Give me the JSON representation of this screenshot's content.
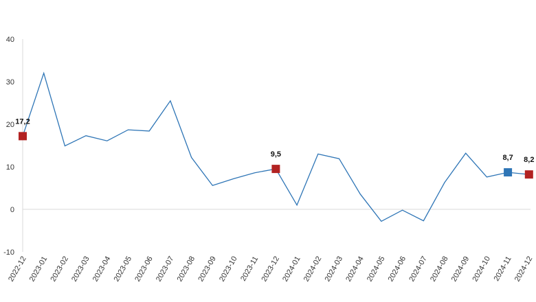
{
  "chart_data": {
    "type": "line",
    "title": "",
    "xlabel": "",
    "ylabel": "",
    "ylim": [
      -10,
      40
    ],
    "yticks": [
      -10,
      0,
      10,
      20,
      30,
      40
    ],
    "grid": false,
    "categories": [
      "2022-12",
      "2023-01",
      "2023-02",
      "2023-03",
      "2023-04",
      "2023-05",
      "2023-06",
      "2023-07",
      "2023-08",
      "2023-09",
      "2023-10",
      "2023-11",
      "2023-12",
      "2024-01",
      "2024-02",
      "2024-03",
      "2024-04",
      "2024-05",
      "2024-06",
      "2024-07",
      "2024-08",
      "2024-09",
      "2024-10",
      "2024-11",
      "2024-12"
    ],
    "series": [
      {
        "color": "#2e75b6",
        "values": [
          17.2,
          32.0,
          14.9,
          17.3,
          16.1,
          18.7,
          18.4,
          25.5,
          12.2,
          5.6,
          7.2,
          8.6,
          9.5,
          1.0,
          13.0,
          11.9,
          3.6,
          -2.8,
          -0.2,
          -2.7,
          6.3,
          13.2,
          7.6,
          8.7,
          8.2
        ]
      }
    ],
    "highlights": [
      {
        "index": 0,
        "label": "17,2",
        "color": "#b22222"
      },
      {
        "index": 12,
        "label": "9,5",
        "color": "#b22222"
      },
      {
        "index": 23,
        "label": "8,7",
        "color": "#2e75b6"
      },
      {
        "index": 24,
        "label": "8,2",
        "color": "#b22222"
      }
    ]
  }
}
